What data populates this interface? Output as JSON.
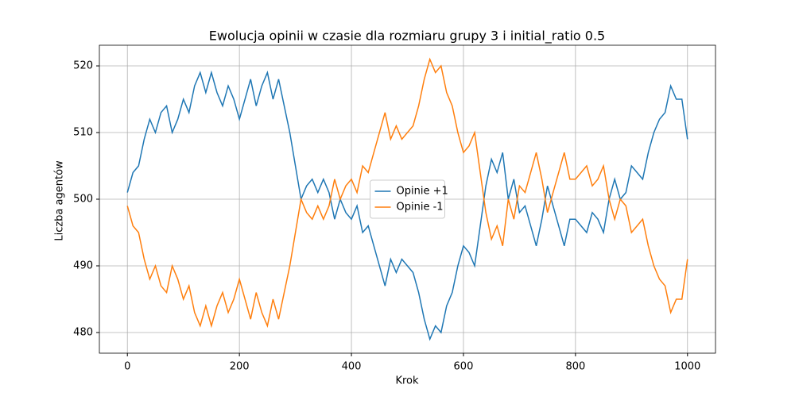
{
  "chart_data": {
    "type": "line",
    "title": "Ewolucja opinii w czasie dla rozmiaru grupy 3 i initial_ratio 0.5",
    "x_label": "Krok",
    "y_label": "Liczba agentów",
    "x": [
      0,
      10,
      20,
      30,
      40,
      50,
      60,
      70,
      80,
      90,
      100,
      110,
      120,
      130,
      140,
      150,
      160,
      170,
      180,
      190,
      200,
      210,
      220,
      230,
      240,
      250,
      260,
      270,
      280,
      290,
      300,
      310,
      320,
      330,
      340,
      350,
      360,
      370,
      380,
      390,
      400,
      410,
      420,
      430,
      440,
      450,
      460,
      470,
      480,
      490,
      500,
      510,
      520,
      530,
      540,
      550,
      560,
      570,
      580,
      590,
      600,
      610,
      620,
      630,
      640,
      650,
      660,
      670,
      680,
      690,
      700,
      710,
      720,
      730,
      740,
      750,
      760,
      770,
      780,
      790,
      800,
      810,
      820,
      830,
      840,
      850,
      860,
      870,
      880,
      890,
      900,
      910,
      920,
      930,
      940,
      950,
      960,
      970,
      980,
      990,
      1000
    ],
    "series": [
      {
        "name": "Opinie +1",
        "color": "#1f77b4",
        "values": [
          501,
          504,
          505,
          509,
          512,
          510,
          513,
          514,
          510,
          512,
          515,
          513,
          517,
          519,
          516,
          519,
          516,
          514,
          517,
          515,
          512,
          515,
          518,
          514,
          517,
          519,
          515,
          518,
          514,
          510,
          505,
          500,
          502,
          503,
          501,
          503,
          501,
          497,
          500,
          498,
          497,
          499,
          495,
          496,
          493,
          490,
          487,
          491,
          489,
          491,
          490,
          489,
          486,
          482,
          479,
          481,
          480,
          484,
          486,
          490,
          493,
          492,
          490,
          496,
          502,
          506,
          504,
          507,
          500,
          503,
          498,
          499,
          496,
          493,
          497,
          502,
          499,
          496,
          493,
          497,
          497,
          496,
          495,
          498,
          497,
          495,
          500,
          503,
          500,
          501,
          505,
          504,
          503,
          507,
          510,
          512,
          513,
          517,
          515,
          515,
          509
        ]
      },
      {
        "name": "Opinie -1",
        "color": "#ff7f0e",
        "values": [
          499,
          496,
          495,
          491,
          488,
          490,
          487,
          486,
          490,
          488,
          485,
          487,
          483,
          481,
          484,
          481,
          484,
          486,
          483,
          485,
          488,
          485,
          482,
          486,
          483,
          481,
          485,
          482,
          486,
          490,
          495,
          500,
          498,
          497,
          499,
          497,
          499,
          503,
          500,
          502,
          503,
          501,
          505,
          504,
          507,
          510,
          513,
          509,
          511,
          509,
          510,
          511,
          514,
          518,
          521,
          519,
          520,
          516,
          514,
          510,
          507,
          508,
          510,
          504,
          498,
          494,
          496,
          493,
          500,
          497,
          502,
          501,
          504,
          507,
          503,
          498,
          501,
          504,
          507,
          503,
          503,
          504,
          505,
          502,
          503,
          505,
          500,
          497,
          500,
          499,
          495,
          496,
          497,
          493,
          490,
          488,
          487,
          483,
          485,
          485,
          491
        ]
      }
    ],
    "xlim": [
      -50,
      1050
    ],
    "ylim": [
      476.9,
      523.1
    ],
    "xticks": [
      0,
      200,
      400,
      600,
      800,
      1000
    ],
    "yticks": [
      480,
      490,
      500,
      510,
      520
    ],
    "grid": true,
    "legend": "center"
  }
}
